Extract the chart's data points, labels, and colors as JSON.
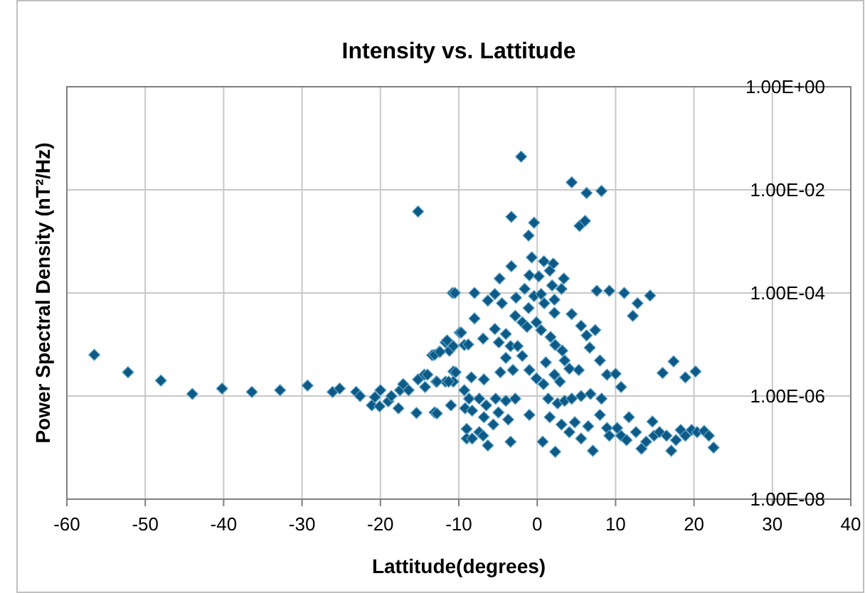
{
  "chart_data": {
    "type": "scatter",
    "title": "Intensity vs. Lattitude",
    "xlabel": "Lattitude(degrees)",
    "ylabel": "Power Spectral Density  (nT²/Hz)",
    "log": "y",
    "grid": true,
    "marker": "diamond",
    "xlim": [
      -60,
      40
    ],
    "xticks": [
      -60,
      -50,
      -40,
      -30,
      -20,
      -10,
      0,
      10,
      20,
      30,
      40
    ],
    "ylim": [
      1e-08,
      1
    ],
    "yticks": [
      {
        "value": 1e-08,
        "label": "1.00E-08"
      },
      {
        "value": 1e-06,
        "label": "1.00E-06"
      },
      {
        "value": 0.0001,
        "label": "1.00E-04"
      },
      {
        "value": 0.01,
        "label": "1.00E-02"
      },
      {
        "value": 1,
        "label": "1.00E+00"
      }
    ],
    "series": [
      {
        "color": "#0e5a86",
        "x": [
          -56.5,
          -52.2,
          -48.0,
          -44.0,
          -40.2,
          -36.4,
          -32.8,
          -29.3,
          -26.1,
          -25.2,
          -23.1,
          -22.6,
          -21.1,
          -20.7,
          -20.0,
          -20.1,
          -19.0,
          -18.6,
          -17.7,
          -17.5,
          -17.1,
          -16.4,
          -15.4,
          -15.2,
          -15.2,
          -14.4,
          -14.3,
          -13.4,
          -13.1,
          -12.9,
          -12.5,
          -11.7,
          -11.7,
          -11.2,
          -11.0,
          -10.8,
          -10.7,
          -10.7,
          -10.7,
          -9.9,
          -9.3,
          -9.3,
          -9.2,
          -9.0,
          -9.0,
          -2.05,
          4.4,
          6.3,
          8.2,
          -3.3,
          -0.4,
          -1.1,
          5.4,
          6.1,
          -0.7,
          0.85,
          2.05,
          1.6,
          -3.3,
          -4.8,
          -1.0,
          0.2,
          3.4,
          3.1,
          1.9,
          -10.5,
          -8.0,
          -5.4,
          -6.3,
          -4.5,
          -2.7,
          -1.6,
          -0.4,
          0.5,
          0.9,
          2.2,
          -1.1,
          7.6,
          9.2,
          11.1,
          14.4,
          12.8,
          12.2,
          -8.0,
          -2.8,
          2.2,
          4.4,
          5.6,
          7.4,
          -1.9,
          -1.3,
          -0.1,
          0.5,
          -9.7,
          -11.5,
          -13.1,
          -12.4,
          -8.8,
          -6.9,
          -5.4,
          -4.9,
          -4.0,
          -3.4,
          -2.5,
          -4.0,
          -1.9,
          -3.1,
          -4.7,
          -6.8,
          -8.4,
          -10.4,
          -11.3,
          -12.8,
          -14.0,
          -1.0,
          -0.1,
          0.8,
          1.7,
          2.3,
          3.2,
          3.5,
          4.1,
          5.3,
          6.3,
          6.7,
          8.0,
          8.9,
          10.0,
          10.7,
          1.1,
          2.2,
          2.9,
          1.4,
          2.6,
          3.5,
          4.4,
          5.6,
          6.8,
          8.2,
          -8.7,
          -8.3,
          -7.4,
          -6.5,
          -5.3,
          -4.0,
          -2.8,
          -4.95,
          -3.7,
          -6.8,
          -7.4,
          -8.3,
          -6.3,
          -6.9,
          -5.6,
          -3.4,
          -1.0,
          1.6,
          0.7,
          2.3,
          3.1,
          4.1,
          4.8,
          5.6,
          6.5,
          7.1,
          8.0,
          8.9,
          9.2,
          10.2,
          10.7,
          11.7,
          11.4,
          12.6,
          13.3,
          13.9,
          14.7,
          14.9,
          15.6,
          16.5,
          17.1,
          17.7,
          18.3,
          18.9,
          19.7,
          20.4,
          21.3,
          21.9,
          22.5,
          16.0,
          17.4,
          18.9,
          20.2,
          -12.8
        ],
        "values": [
          6.3e-06,
          2.9e-06,
          2e-06,
          1.1e-06,
          1.4e-06,
          1.2e-06,
          1.3e-06,
          1.6e-06,
          1.2e-06,
          1.4e-06,
          1.2e-06,
          1e-06,
          6.6e-07,
          9.5e-07,
          1.3e-06,
          6.3e-07,
          7.9e-07,
          1e-06,
          5.8e-07,
          1.3e-06,
          1.7e-06,
          1.3e-06,
          4.7e-07,
          0.0038,
          2.1e-06,
          2.6e-06,
          1.5e-06,
          6.2e-06,
          4.8e-07,
          1.9e-06,
          7.2e-06,
          1.1e-05,
          1.9e-06,
          7.6e-06,
          6.6e-07,
          0.0001,
          3e-06,
          9.3e-06,
          1.9e-06,
          1.7e-05,
          9.8e-06,
          1.3e-06,
          5.8e-07,
          2.3e-07,
          1.5e-07,
          0.044,
          0.014,
          0.0087,
          0.0095,
          0.003,
          0.0023,
          0.0013,
          0.002,
          0.0025,
          0.00049,
          0.00041,
          0.00037,
          0.00027,
          0.00033,
          0.00019,
          0.00022,
          0.00021,
          0.00019,
          0.00012,
          0.00014,
          0.0001,
          0.0001,
          9.5e-05,
          7.1e-05,
          6.3e-05,
          8.1e-05,
          0.00012,
          8.7e-05,
          9.5e-05,
          6.3e-05,
          7.4e-05,
          5.1e-05,
          0.00011,
          0.00011,
          0.0001,
          8.9e-05,
          6.3e-05,
          3.6e-05,
          3.2e-05,
          3.6e-05,
          4.1e-05,
          3.9e-05,
          2.3e-05,
          1.9e-05,
          2.7e-05,
          2.2e-05,
          2.7e-05,
          1.9e-05,
          1.7e-05,
          1.2e-05,
          6.3e-06,
          7.2e-06,
          1e-05,
          1.3e-05,
          2e-05,
          1.1e-05,
          1.6e-05,
          9.3e-06,
          9.3e-06,
          5.5e-06,
          6e-06,
          3.2e-06,
          2.9e-06,
          2.1e-06,
          2.3e-06,
          2.9e-06,
          1.9e-06,
          1.9e-06,
          2.6e-06,
          3.2e-06,
          2.2e-06,
          1.7e-06,
          1.4e-05,
          9.8e-06,
          7.6e-06,
          4.9e-06,
          3.4e-06,
          3.2e-06,
          1.5e-05,
          8.7e-06,
          4.9e-06,
          2.6e-06,
          2.7e-06,
          1.5e-06,
          4.5e-06,
          2.6e-06,
          1.9e-06,
          8.9e-07,
          7.2e-07,
          8.1e-07,
          8.9e-07,
          1e-06,
          1.1e-06,
          8.9e-07,
          8.9e-07,
          5.2e-07,
          8.9e-07,
          6.6e-07,
          8.9e-07,
          8.1e-07,
          8.9e-07,
          4.8e-07,
          3.5e-07,
          3.9e-07,
          2e-07,
          1.5e-07,
          1.1e-07,
          1.7e-07,
          2.8e-07,
          1.3e-07,
          4.3e-07,
          3.9e-07,
          1.3e-07,
          8.3e-08,
          2.8e-07,
          2e-07,
          3.1e-07,
          1.5e-07,
          2.6e-07,
          8.7e-08,
          4.3e-07,
          2.4e-07,
          1.7e-07,
          2.4e-07,
          1.7e-07,
          3.9e-07,
          1.4e-07,
          2e-07,
          9.5e-08,
          1.3e-07,
          3.2e-07,
          1.7e-07,
          2e-07,
          1.7e-07,
          8.7e-08,
          1.4e-07,
          2.2e-07,
          1.7e-07,
          2.2e-07,
          2e-07,
          2.1e-07,
          1.7e-07,
          1e-07,
          2.8e-06,
          4.7e-06,
          2.3e-06,
          3e-06,
          4.6e-07
        ]
      }
    ]
  }
}
